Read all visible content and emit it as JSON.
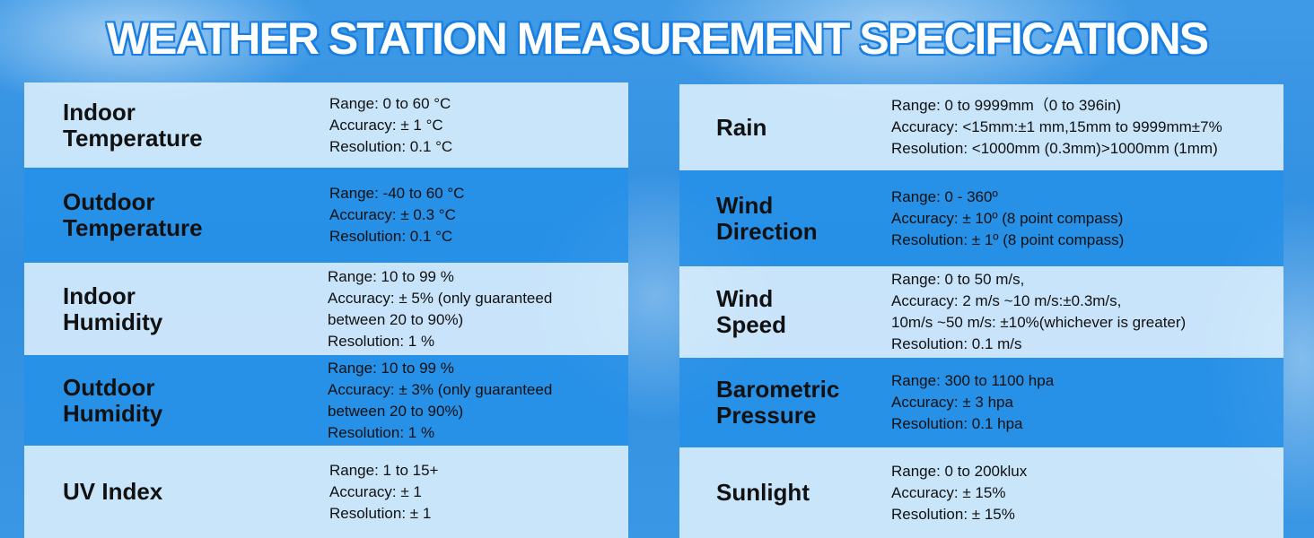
{
  "title": "WEATHER STATION MEASUREMENT SPECIFICATIONS",
  "left": [
    {
      "label": [
        "Indoor",
        "Temperature"
      ],
      "specs": [
        "Range: 0 to 60 °C",
        "Accuracy: ± 1 °C",
        "Resolution: 0.1 °C"
      ]
    },
    {
      "label": [
        "Outdoor",
        "Temperature"
      ],
      "specs": [
        "Range: -40 to 60 °C",
        "Accuracy: ± 0.3 °C",
        "Resolution: 0.1 °C"
      ]
    },
    {
      "label": [
        "Indoor",
        "Humidity"
      ],
      "specs": [
        "Range: 10 to 99 %",
        "Accuracy: ± 5% (only guaranteed",
        "between 20 to 90%)",
        "Resolution: 1 %"
      ]
    },
    {
      "label": [
        "Outdoor",
        "Humidity"
      ],
      "specs": [
        "Range: 10 to 99 %",
        "Accuracy: ± 3% (only guaranteed",
        "between 20 to 90%)",
        "Resolution: 1 %"
      ]
    },
    {
      "label": [
        "UV Index"
      ],
      "specs": [
        "Range: 1 to 15+",
        "Accuracy: ± 1",
        "Resolution: ± 1"
      ]
    }
  ],
  "right": [
    {
      "label": [
        "Rain"
      ],
      "specs": [
        "Range: 0 to 9999mm（0 to 396in)",
        "Accuracy: <15mm:±1 mm,15mm to 9999mm±7%",
        "Resolution: <1000mm (0.3mm)>1000mm (1mm)"
      ]
    },
    {
      "label": [
        "Wind",
        "Direction"
      ],
      "specs": [
        "Range: 0 - 360º",
        "Accuracy: ± 10º (8 point compass)",
        "Resolution: ± 1º (8 point compass)"
      ]
    },
    {
      "label": [
        "Wind",
        "Speed"
      ],
      "specs": [
        "Range: 0 to 50 m/s,",
        "Accuracy: 2 m/s ~10 m/s:±0.3m/s,",
        "10m/s ~50 m/s: ±10%(whichever is greater)",
        "Resolution: 0.1 m/s"
      ]
    },
    {
      "label": [
        "Barometric",
        "Pressure"
      ],
      "specs": [
        "Range: 300 to 1100 hpa",
        "Accuracy: ± 3 hpa",
        "Resolution: 0.1 hpa"
      ]
    },
    {
      "label": [
        "Sunlight"
      ],
      "specs": [
        "Range: 0 to 200klux",
        "Accuracy: ± 15%",
        "Resolution: ± 15%"
      ]
    }
  ]
}
